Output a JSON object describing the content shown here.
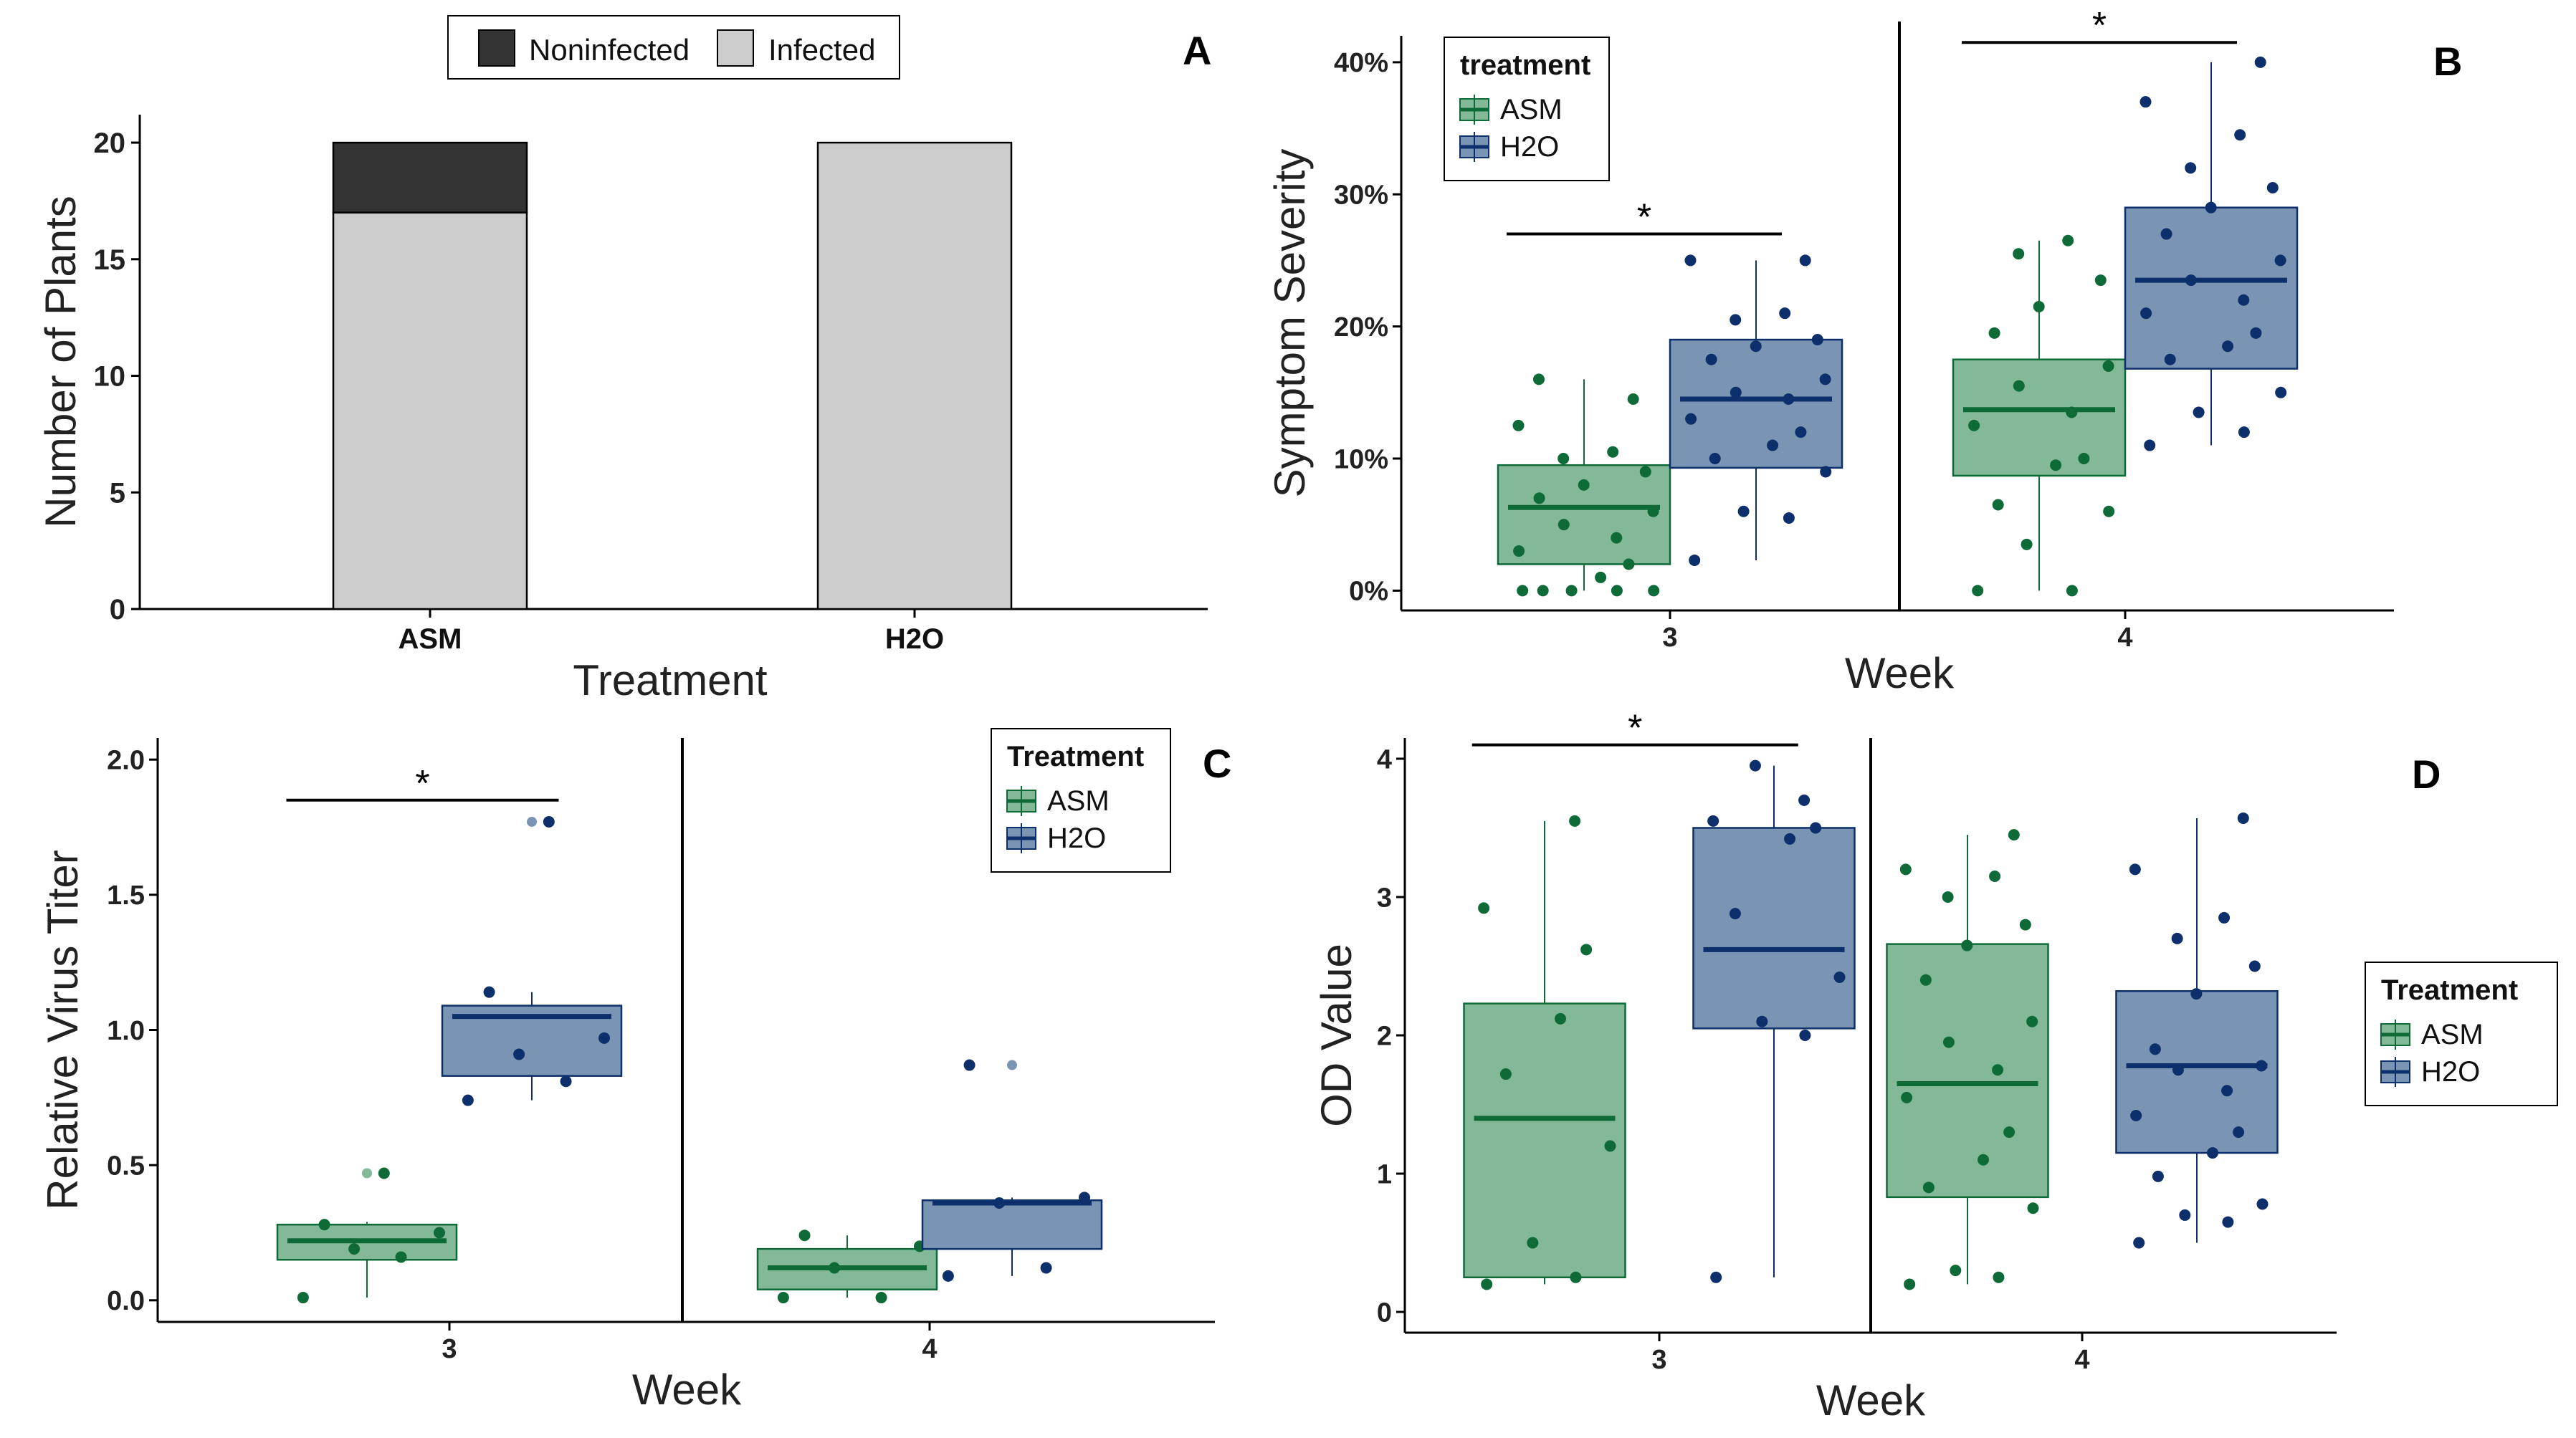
{
  "colors": {
    "asm_fill": "#83b898",
    "asm_line": "#0e6b38",
    "asm_dot": "#0e6b38",
    "h2o_fill": "#7a95b3",
    "h2o_line": "#0d2f6b",
    "h2o_dot": "#0d2f6b",
    "noninfected": "#333333",
    "infected": "#cccccc",
    "axis": "#000000"
  },
  "chart_data": [
    {
      "id": "A",
      "panel_label": "A",
      "type": "bar",
      "stacked": true,
      "categories": [
        "ASM",
        "H2O"
      ],
      "series": [
        {
          "name": "Infected",
          "values": [
            17,
            20
          ]
        },
        {
          "name": "Noninfected",
          "values": [
            3,
            0
          ]
        }
      ],
      "xlabel": "Treatment",
      "ylabel": "Number of Plants",
      "ylim": [
        0,
        21.2
      ],
      "yticks": [
        0,
        5,
        10,
        15,
        20
      ],
      "ytick_labels": [
        "0",
        "5",
        "10",
        "15",
        "20"
      ],
      "legend": {
        "entries": [
          "Noninfected",
          "Infected"
        ],
        "position": "top"
      }
    },
    {
      "id": "B",
      "panel_label": "B",
      "type": "boxplot",
      "categories": [
        "3",
        "4"
      ],
      "groups": [
        "ASM",
        "H2O"
      ],
      "xlabel": "Week",
      "ylabel": "Symptom Severity",
      "ylim": [
        -1.5,
        42
      ],
      "yticks": [
        0,
        10,
        20,
        30,
        40
      ],
      "ytick_labels": [
        "0%",
        "10%",
        "20%",
        "30%",
        "40%"
      ],
      "legend": {
        "title": "treatment",
        "entries": [
          "ASM",
          "H2O"
        ],
        "position": "top-left"
      },
      "significance": [
        {
          "week": "3",
          "label": "*",
          "y": 27
        },
        {
          "week": "4",
          "label": "*",
          "y": 41.5
        }
      ],
      "boxes": [
        {
          "week": "3",
          "group": "ASM",
          "q1": 2,
          "median": 6.3,
          "q3": 9.5,
          "min": 0,
          "max": 16,
          "outliers": [],
          "points": [
            0,
            0,
            0,
            0,
            0,
            1,
            2,
            3,
            4,
            5,
            6,
            7,
            8,
            9,
            10,
            10.5,
            12.5,
            14.5,
            16
          ]
        },
        {
          "week": "3",
          "group": "H2O",
          "q1": 9.3,
          "median": 14.5,
          "q3": 19,
          "min": 2.3,
          "max": 25,
          "outliers": [],
          "points": [
            2.3,
            5.5,
            6,
            9,
            10,
            11,
            12,
            13,
            14.5,
            15,
            16,
            17.5,
            18.5,
            19,
            20.5,
            21,
            25,
            25
          ]
        },
        {
          "week": "4",
          "group": "ASM",
          "q1": 8.7,
          "median": 13.7,
          "q3": 17.5,
          "min": 0,
          "max": 26.5,
          "outliers": [],
          "points": [
            0,
            0,
            3.5,
            6,
            6.5,
            9.5,
            10,
            12.5,
            13.5,
            15.5,
            17,
            19.5,
            21.5,
            23.5,
            25.5,
            26.5
          ]
        },
        {
          "week": "4",
          "group": "H2O",
          "q1": 16.8,
          "median": 23.5,
          "q3": 29,
          "min": 11,
          "max": 40,
          "outliers": [],
          "points": [
            11,
            12,
            13.5,
            15,
            17.5,
            18.5,
            19.5,
            21,
            22,
            23.5,
            25,
            27,
            29,
            30.5,
            32,
            34.5,
            37,
            40
          ]
        }
      ]
    },
    {
      "id": "C",
      "panel_label": "C",
      "type": "boxplot",
      "categories": [
        "3",
        "4"
      ],
      "groups": [
        "ASM",
        "H2O"
      ],
      "xlabel": "Week",
      "ylabel": "Relative Virus Titer",
      "ylim": [
        -0.08,
        2.08
      ],
      "yticks": [
        0,
        0.5,
        1,
        1.5,
        2
      ],
      "ytick_labels": [
        "0.0",
        "0.5",
        "1.0",
        "1.5",
        "2.0"
      ],
      "legend": {
        "title": "Treatment",
        "entries": [
          "ASM",
          "H2O"
        ],
        "position": "top-right"
      },
      "significance": [
        {
          "week": "3",
          "label": "*",
          "y": 1.85
        }
      ],
      "boxes": [
        {
          "week": "3",
          "group": "ASM",
          "q1": 0.15,
          "median": 0.22,
          "q3": 0.28,
          "min": 0.01,
          "max": 0.29,
          "outliers": [
            0.47
          ],
          "points": [
            0.01,
            0.16,
            0.19,
            0.25,
            0.28,
            0.47
          ]
        },
        {
          "week": "3",
          "group": "H2O",
          "q1": 0.83,
          "median": 1.05,
          "q3": 1.09,
          "min": 0.74,
          "max": 1.14,
          "outliers": [
            1.77
          ],
          "points": [
            0.74,
            0.81,
            0.91,
            0.97,
            1.14,
            1.77
          ]
        },
        {
          "week": "4",
          "group": "ASM",
          "q1": 0.04,
          "median": 0.12,
          "q3": 0.19,
          "min": 0.01,
          "max": 0.24,
          "outliers": [],
          "points": [
            0.01,
            0.01,
            0.12,
            0.2,
            0.24
          ]
        },
        {
          "week": "4",
          "group": "H2O",
          "q1": 0.19,
          "median": 0.36,
          "q3": 0.37,
          "min": 0.09,
          "max": 0.38,
          "outliers": [
            0.87
          ],
          "points": [
            0.09,
            0.12,
            0.36,
            0.38,
            0.87
          ]
        }
      ]
    },
    {
      "id": "D",
      "panel_label": "D",
      "type": "boxplot",
      "categories": [
        "3",
        "4"
      ],
      "groups": [
        "ASM",
        "H2O"
      ],
      "xlabel": "Week",
      "ylabel": "OD Value",
      "ylim": [
        -0.15,
        4.15
      ],
      "yticks": [
        0,
        1,
        2,
        3,
        4
      ],
      "ytick_labels": [
        "0",
        "1",
        "2",
        "3",
        "4"
      ],
      "legend": {
        "title": "Treatment",
        "entries": [
          "ASM",
          "H2O"
        ],
        "position": "right"
      },
      "significance": [
        {
          "week": "3",
          "label": "*",
          "y": 4.1
        }
      ],
      "boxes": [
        {
          "week": "3",
          "group": "ASM",
          "q1": 0.25,
          "median": 1.4,
          "q3": 2.23,
          "min": 0.2,
          "max": 3.55,
          "outliers": [],
          "points": [
            0.2,
            0.25,
            0.5,
            1.2,
            1.72,
            2.12,
            2.62,
            2.92,
            3.55
          ]
        },
        {
          "week": "3",
          "group": "H2O",
          "q1": 2.05,
          "median": 2.62,
          "q3": 3.5,
          "min": 0.25,
          "max": 3.95,
          "outliers": [],
          "points": [
            0.25,
            2.0,
            2.1,
            2.42,
            2.88,
            3.42,
            3.5,
            3.55,
            3.7,
            3.95
          ]
        },
        {
          "week": "4",
          "group": "ASM",
          "q1": 0.83,
          "median": 1.65,
          "q3": 2.66,
          "min": 0.2,
          "max": 3.45,
          "outliers": [],
          "points": [
            0.2,
            0.25,
            0.3,
            0.75,
            0.9,
            1.1,
            1.3,
            1.55,
            1.75,
            1.95,
            2.1,
            2.4,
            2.65,
            2.8,
            3.0,
            3.15,
            3.2,
            3.45
          ]
        },
        {
          "week": "4",
          "group": "H2O",
          "q1": 1.15,
          "median": 1.78,
          "q3": 2.32,
          "min": 0.5,
          "max": 3.57,
          "outliers": [],
          "points": [
            0.5,
            0.65,
            0.7,
            0.78,
            0.98,
            1.15,
            1.3,
            1.42,
            1.6,
            1.75,
            1.78,
            1.9,
            2.3,
            2.5,
            2.7,
            2.85,
            3.2,
            3.57
          ]
        }
      ]
    }
  ]
}
